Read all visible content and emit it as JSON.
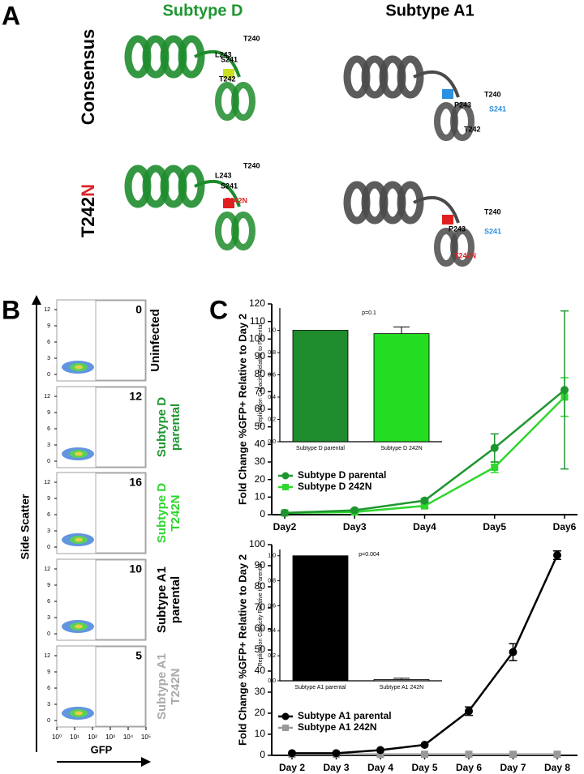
{
  "panel_a": {
    "letter": "A",
    "columns": [
      "Subtype D",
      "Subtype A1"
    ],
    "rows": [
      "Consensus",
      {
        "base": "T242",
        "mutation": "N"
      }
    ],
    "structures": [
      {
        "labels": [
          "T240",
          "L243",
          "S241",
          "T242"
        ]
      },
      {
        "labels": [
          "T240",
          "S241",
          "P243",
          "T242"
        ]
      },
      {
        "labels": [
          "T240",
          "L243",
          "S241",
          "T242N"
        ]
      },
      {
        "labels": [
          "T240",
          "P243",
          "S241",
          "T242N"
        ]
      }
    ]
  },
  "panel_b": {
    "letter": "B",
    "y_label": "Side Scatter",
    "x_label": "GFP",
    "yticks": [
      0,
      3,
      6,
      9,
      12
    ],
    "xticks": [
      {
        "value": 0,
        "label": "10⁰"
      },
      {
        "value": 1,
        "label": "10¹"
      },
      {
        "value": 2,
        "label": "10²"
      },
      {
        "value": 3,
        "label": "10³"
      },
      {
        "value": 4,
        "label": "10⁴"
      },
      {
        "value": 5,
        "label": "10⁵"
      }
    ],
    "samples": [
      {
        "label": [
          "Uninfected"
        ],
        "value": 0,
        "color": "#000000"
      },
      {
        "label": [
          "Subtype D",
          "parental"
        ],
        "value": 12,
        "color": "#1e9630"
      },
      {
        "label": [
          "Subtype D",
          "T242N"
        ],
        "value": 16,
        "color": "#2ed62e"
      },
      {
        "label": [
          "Subtype A1",
          "parental"
        ],
        "value": 10,
        "color": "#000000"
      },
      {
        "label": [
          "Subtype A1",
          "T242N"
        ],
        "value": 5,
        "color": "#aaaaaa"
      }
    ]
  },
  "panel_c": {
    "letter": "C"
  },
  "chart_data": [
    {
      "type": "line",
      "y_label": "Fold Change %GFP+ Relative to Day 2",
      "categories": [
        "Day2",
        "Day3",
        "Day4",
        "Day5",
        "Day6"
      ],
      "ylim": [
        0,
        120
      ],
      "yticks": [
        0,
        10,
        20,
        30,
        40,
        50,
        60,
        70,
        80,
        90,
        100,
        110,
        120
      ],
      "legend": "lower left",
      "series": [
        {
          "name": "Subtype D parental",
          "color": "#1e9630",
          "marker": "circle",
          "values": [
            1,
            2.5,
            8,
            38,
            71
          ],
          "errors": [
            0.3,
            0.8,
            1,
            8,
            45
          ]
        },
        {
          "name": "Subtype D 242N",
          "color": "#2ed62e",
          "marker": "square",
          "values": [
            1,
            1.5,
            5,
            27,
            67
          ],
          "errors": [
            0.3,
            0.5,
            1,
            3,
            11
          ]
        }
      ]
    },
    {
      "type": "bar",
      "y_label": "Replication Capacity Relative to Parental",
      "annotation": "p=0.1",
      "categories": [
        "Subtype D parental",
        "Subtype D 242N"
      ],
      "values": [
        1,
        0.97
      ],
      "errors": [
        0,
        0.06
      ],
      "colors": [
        "#1e8c2c",
        "#22dd22"
      ],
      "ylim": [
        0,
        1.2
      ],
      "yticks": [
        {
          "value": 0,
          "label": "0.0"
        },
        {
          "value": 0.2,
          "label": "0.2"
        },
        {
          "value": 0.4,
          "label": "0.4"
        },
        {
          "value": 0.6,
          "label": "0.6"
        },
        {
          "value": 0.8,
          "label": "0.8"
        },
        {
          "value": 1,
          "label": "1.0"
        }
      ]
    },
    {
      "type": "line",
      "y_label": "Fold Change %GFP+ Relative to Day 2",
      "categories": [
        "Day 2",
        "Day 3",
        "Day 4",
        "Day 5",
        "Day 6",
        "Day 7",
        "Day 8"
      ],
      "ylim": [
        0,
        100
      ],
      "yticks": [
        0,
        10,
        20,
        30,
        40,
        50,
        60,
        70,
        80,
        90,
        100
      ],
      "legend": "lower left",
      "series": [
        {
          "name": "Subtype A1 parental",
          "color": "#000000",
          "marker": "circle",
          "values": [
            1,
            1,
            2.5,
            5,
            21,
            49,
            95
          ],
          "errors": [
            0,
            0,
            0,
            0,
            2,
            4,
            2
          ]
        },
        {
          "name": "Subtype A1 242N",
          "color": "#999999",
          "marker": "square",
          "values": [
            0.5,
            0.5,
            0.5,
            0.5,
            0.5,
            0.5,
            0.5
          ],
          "errors": [
            0,
            0,
            0,
            0,
            0,
            0,
            0
          ]
        }
      ]
    },
    {
      "type": "bar",
      "y_label": "Replication Capacity Relative to Parental",
      "annotation": "p=0.004",
      "categories": [
        "Subtype A1 parental",
        "Subtype A1 242N"
      ],
      "values": [
        1,
        0.01
      ],
      "errors": [
        0,
        0.01
      ],
      "colors": [
        "#000000",
        "#999999"
      ],
      "ylim": [
        0,
        1.05
      ],
      "yticks": [
        {
          "value": 0,
          "label": "0.0"
        },
        {
          "value": 0.2,
          "label": "0.2"
        },
        {
          "value": 0.4,
          "label": "0.4"
        },
        {
          "value": 0.6,
          "label": "0.6"
        },
        {
          "value": 0.8,
          "label": "0.8"
        },
        {
          "value": 1,
          "label": "1.0"
        }
      ]
    }
  ]
}
